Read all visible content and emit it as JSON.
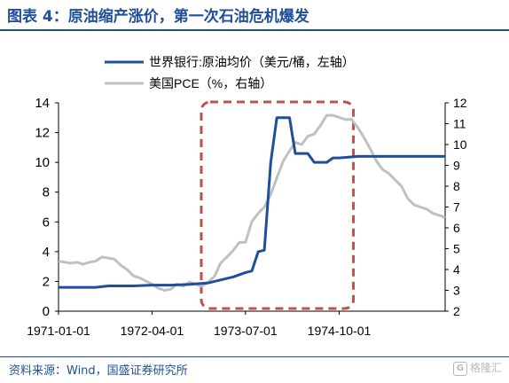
{
  "header": {
    "title": "图表 4：原油缩产涨价，第一次石油危机爆发"
  },
  "footer": {
    "source": "资料来源：Wind，国盛证券研究所",
    "watermark": "格隆汇"
  },
  "colors": {
    "brand": "#1f4f9a",
    "series_oil": "#1f4f9a",
    "series_pce": "#c0c0c0",
    "highlight": "#c0504d"
  },
  "chart_data": {
    "type": "line",
    "x_ticks": [
      "1971-01-01",
      "1972-04-01",
      "1973-07-01",
      "1974-10-01"
    ],
    "y_left": {
      "range": [
        0,
        14
      ],
      "ticks": [
        0,
        2,
        4,
        6,
        8,
        10,
        12,
        14
      ]
    },
    "y_right": {
      "range": [
        2,
        12
      ],
      "ticks": [
        2,
        3,
        4,
        5,
        6,
        7,
        8,
        9,
        10,
        11,
        12
      ]
    },
    "legend_position": "top-right",
    "grid": false,
    "highlight_box": {
      "x_start": "1973-01-01",
      "x_end": "1974-12-01",
      "style": "dashed"
    },
    "series": [
      {
        "name": "世界银行:原油均价（美元/桶，左轴）",
        "axis": "left",
        "points": [
          [
            "1971-01-01",
            1.6
          ],
          [
            "1971-04-01",
            1.6
          ],
          [
            "1971-07-01",
            1.6
          ],
          [
            "1971-09-01",
            1.7
          ],
          [
            "1972-01-01",
            1.7
          ],
          [
            "1972-04-01",
            1.75
          ],
          [
            "1972-07-01",
            1.75
          ],
          [
            "1972-10-01",
            1.8
          ],
          [
            "1973-01-01",
            1.9
          ],
          [
            "1973-03-01",
            2.1
          ],
          [
            "1973-05-01",
            2.3
          ],
          [
            "1973-07-01",
            2.6
          ],
          [
            "1973-08-01",
            2.7
          ],
          [
            "1973-09-01",
            4.0
          ],
          [
            "1973-10-01",
            4.1
          ],
          [
            "1973-11-01",
            10.0
          ],
          [
            "1973-12-01",
            13.0
          ],
          [
            "1974-01-01",
            13.0
          ],
          [
            "1974-02-01",
            13.0
          ],
          [
            "1974-03-01",
            10.6
          ],
          [
            "1974-04-01",
            10.6
          ],
          [
            "1974-05-01",
            10.6
          ],
          [
            "1974-06-01",
            10.0
          ],
          [
            "1974-07-01",
            10.0
          ],
          [
            "1974-08-01",
            10.0
          ],
          [
            "1974-09-01",
            10.3
          ],
          [
            "1974-10-01",
            10.3
          ],
          [
            "1975-01-01",
            10.4
          ],
          [
            "1975-07-01",
            10.4
          ],
          [
            "1976-01-01",
            10.4
          ],
          [
            "1976-03-01",
            10.4
          ]
        ]
      },
      {
        "name": "美国PCE（%，右轴）",
        "axis": "right",
        "points": [
          [
            "1971-01-01",
            4.4
          ],
          [
            "1971-02-01",
            4.35
          ],
          [
            "1971-03-01",
            4.3
          ],
          [
            "1971-04-01",
            4.35
          ],
          [
            "1971-05-01",
            4.25
          ],
          [
            "1971-06-01",
            4.35
          ],
          [
            "1971-07-01",
            4.4
          ],
          [
            "1971-08-01",
            4.6
          ],
          [
            "1971-09-01",
            4.55
          ],
          [
            "1971-10-01",
            4.5
          ],
          [
            "1971-11-01",
            4.2
          ],
          [
            "1971-12-01",
            4.0
          ],
          [
            "1972-01-01",
            3.7
          ],
          [
            "1972-02-01",
            3.6
          ],
          [
            "1972-03-01",
            3.45
          ],
          [
            "1972-04-01",
            3.3
          ],
          [
            "1972-05-01",
            3.1
          ],
          [
            "1972-06-01",
            3.0
          ],
          [
            "1972-07-01",
            3.05
          ],
          [
            "1972-08-01",
            3.3
          ],
          [
            "1972-09-01",
            3.2
          ],
          [
            "1972-10-01",
            3.4
          ],
          [
            "1972-11-01",
            3.3
          ],
          [
            "1972-12-01",
            3.2
          ],
          [
            "1973-01-01",
            3.4
          ],
          [
            "1973-02-01",
            3.7
          ],
          [
            "1973-03-01",
            4.3
          ],
          [
            "1973-04-01",
            4.6
          ],
          [
            "1973-05-01",
            4.9
          ],
          [
            "1973-06-01",
            5.3
          ],
          [
            "1973-07-01",
            5.3
          ],
          [
            "1973-08-01",
            6.3
          ],
          [
            "1973-09-01",
            6.7
          ],
          [
            "1973-10-01",
            7.0
          ],
          [
            "1973-11-01",
            7.6
          ],
          [
            "1973-12-01",
            8.4
          ],
          [
            "1974-01-01",
            9.2
          ],
          [
            "1974-02-01",
            9.7
          ],
          [
            "1974-03-01",
            10.1
          ],
          [
            "1974-04-01",
            10.0
          ],
          [
            "1974-05-01",
            10.4
          ],
          [
            "1974-06-01",
            10.5
          ],
          [
            "1974-07-01",
            10.9
          ],
          [
            "1974-08-01",
            11.4
          ],
          [
            "1974-09-01",
            11.4
          ],
          [
            "1974-10-01",
            11.3
          ],
          [
            "1974-11-01",
            11.2
          ],
          [
            "1974-12-01",
            11.2
          ],
          [
            "1975-01-01",
            10.8
          ],
          [
            "1975-02-01",
            10.3
          ],
          [
            "1975-03-01",
            9.8
          ],
          [
            "1975-04-01",
            9.2
          ],
          [
            "1975-05-01",
            8.8
          ],
          [
            "1975-06-01",
            8.6
          ],
          [
            "1975-07-01",
            8.3
          ],
          [
            "1975-08-01",
            8.0
          ],
          [
            "1975-09-01",
            7.4
          ],
          [
            "1975-10-01",
            7.1
          ],
          [
            "1975-11-01",
            7.0
          ],
          [
            "1975-12-01",
            6.9
          ],
          [
            "1976-01-01",
            6.7
          ],
          [
            "1976-02-01",
            6.6
          ],
          [
            "1976-03-01",
            6.5
          ]
        ]
      }
    ]
  }
}
